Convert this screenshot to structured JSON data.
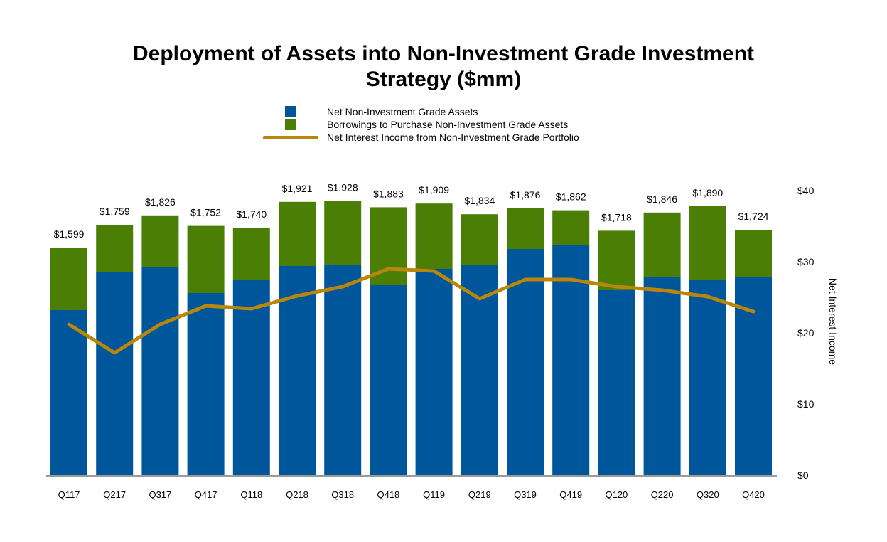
{
  "colors": {
    "net_assets": "#00569a",
    "borrowings": "#4a7e04",
    "net_interest": "#b8860b",
    "axis": "#9a9a9a"
  },
  "chart_data": {
    "type": "bar",
    "title": "Deployment of Assets into Non-Investment Grade Investment Strategy ($mm)",
    "categories": [
      "Q117",
      "Q217",
      "Q317",
      "Q417",
      "Q118",
      "Q218",
      "Q318",
      "Q418",
      "Q119",
      "Q219",
      "Q319",
      "Q419",
      "Q120",
      "Q220",
      "Q320",
      "Q420"
    ],
    "bar_max": 2000,
    "series": [
      {
        "name": "Net Non-Investment Grade Assets",
        "kind": "stacked-bar",
        "values": [
          1160,
          1430,
          1460,
          1280,
          1370,
          1470,
          1480,
          1340,
          1450,
          1480,
          1590,
          1620,
          1300,
          1390,
          1370,
          1390
        ]
      },
      {
        "name": "Borrowings to Purchase Non-Investment Grade Assets",
        "kind": "stacked-bar",
        "values": [
          439,
          329,
          366,
          472,
          370,
          451,
          448,
          543,
          459,
          354,
          286,
          242,
          418,
          456,
          520,
          334
        ]
      },
      {
        "name": "Net Interest Income from Non-Investment Grade Portfolio",
        "kind": "line",
        "axis": "right",
        "values": [
          21.2,
          17.2,
          21.2,
          23.8,
          23.4,
          25.2,
          26.5,
          29.0,
          28.7,
          24.8,
          27.5,
          27.5,
          26.5,
          26.0,
          25.1,
          23.0
        ]
      }
    ],
    "totals": [
      "$1,599",
      "$1,759",
      "$1,826",
      "$1,752",
      "$1,740",
      "$1,921",
      "$1,928",
      "$1,883",
      "$1,909",
      "$1,834",
      "$1,876",
      "$1,862",
      "$1,718",
      "$1,846",
      "$1,890",
      "$1,724"
    ],
    "y2label": "Net Interest Income",
    "y2lim": [
      0,
      40
    ],
    "y2ticks": [
      0,
      10,
      20,
      30,
      40
    ],
    "y2tick_labels": [
      "$0",
      "$10",
      "$20",
      "$30",
      "$40"
    ],
    "legend_position": "top-center"
  }
}
